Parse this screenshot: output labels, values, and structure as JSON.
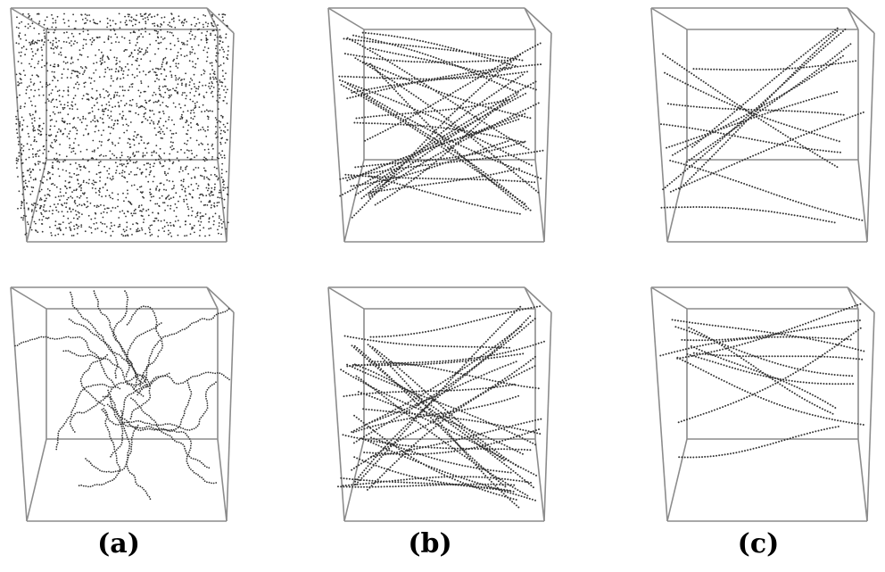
{
  "panels": [
    {
      "label": "(a)",
      "top_pattern": "scattered-points",
      "bottom_pattern": "branching-chains"
    },
    {
      "label": "(b)",
      "top_pattern": "dense-line-tracks",
      "bottom_pattern": "dense-line-tracks"
    },
    {
      "label": "(c)",
      "top_pattern": "sparse-line-tracks",
      "bottom_pattern": "sparse-line-tracks"
    }
  ],
  "colors": {
    "box_edge": "#8c8c8c",
    "points": "#333333",
    "background": "#ffffff"
  }
}
